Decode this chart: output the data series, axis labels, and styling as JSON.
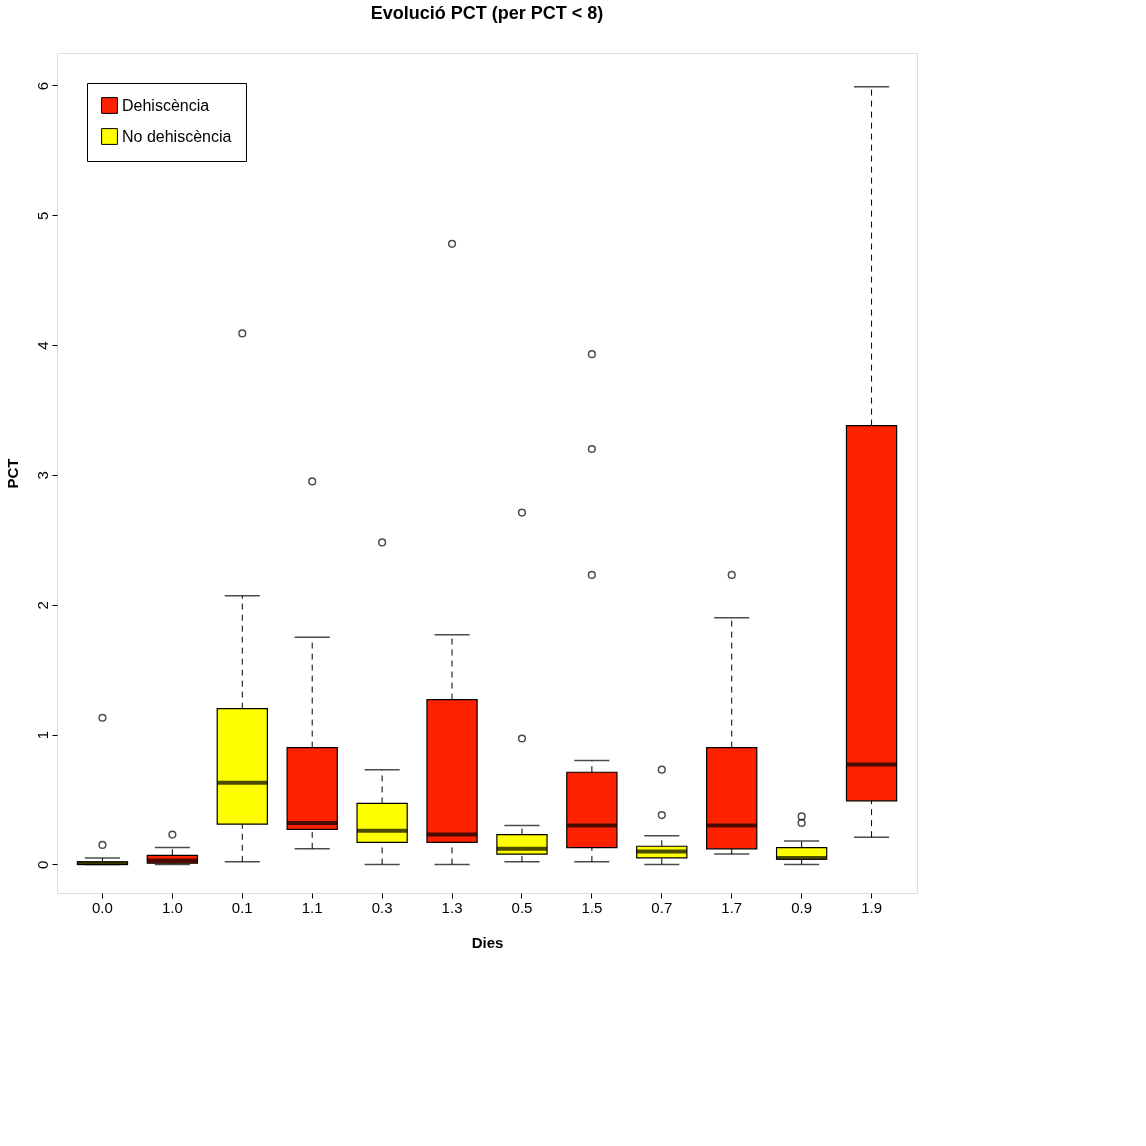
{
  "chart_data": {
    "type": "box",
    "title": "Evolució PCT (per PCT < 8)",
    "xlabel": "Dies",
    "ylabel": "PCT",
    "categories": [
      "0.0",
      "1.0",
      "0.1",
      "1.1",
      "0.3",
      "1.3",
      "0.5",
      "1.5",
      "0.7",
      "1.7",
      "0.9",
      "1.9"
    ],
    "ylim": [
      -0.22,
      6.25
    ],
    "yticks": [
      0,
      1,
      2,
      3,
      4,
      5,
      6
    ],
    "grid": false,
    "legend": "top left",
    "series": [
      {
        "name": "Dehiscència",
        "color": "#ff2200",
        "boxes": [
          null,
          {
            "low": 0,
            "q1": 0.01,
            "median": 0.03,
            "q3": 0.07,
            "high": 0.13,
            "outliers": [
              0.23
            ]
          },
          null,
          {
            "low": 0.12,
            "q1": 0.27,
            "median": 0.32,
            "q3": 0.9,
            "high": 1.75,
            "outliers": [
              2.95
            ]
          },
          null,
          {
            "low": 0,
            "q1": 0.17,
            "median": 0.23,
            "q3": 1.27,
            "high": 1.77,
            "outliers": [
              4.78
            ]
          },
          null,
          {
            "low": 0.02,
            "q1": 0.13,
            "median": 0.3,
            "q3": 0.71,
            "high": 0.8,
            "outliers": [
              2.23,
              3.2,
              3.93
            ]
          },
          null,
          {
            "low": 0.08,
            "q1": 0.12,
            "median": 0.3,
            "q3": 0.9,
            "high": 1.9,
            "outliers": [
              2.23
            ]
          },
          null,
          {
            "low": 0.21,
            "q1": 0.49,
            "median": 0.77,
            "q3": 3.38,
            "high": 5.99
          }
        ]
      },
      {
        "name": "No dehiscència",
        "color": "#ffff00",
        "boxes": [
          {
            "low": 0,
            "q1": 0,
            "median": 0.01,
            "q3": 0.02,
            "high": 0.05,
            "outliers": [
              0.15,
              1.13
            ]
          },
          null,
          {
            "low": 0.02,
            "q1": 0.31,
            "median": 0.63,
            "q3": 1.2,
            "high": 2.07,
            "outliers": [
              4.09
            ]
          },
          null,
          {
            "low": 0,
            "q1": 0.17,
            "median": 0.26,
            "q3": 0.47,
            "high": 0.73,
            "outliers": [
              2.48
            ]
          },
          null,
          {
            "low": 0.02,
            "q1": 0.08,
            "median": 0.12,
            "q3": 0.23,
            "high": 0.3,
            "outliers": [
              0.97,
              2.71
            ]
          },
          null,
          {
            "low": 0,
            "q1": 0.05,
            "median": 0.1,
            "q3": 0.14,
            "high": 0.22,
            "outliers": [
              0.38,
              0.73
            ]
          },
          null,
          {
            "low": 0,
            "q1": 0.04,
            "median": 0.05,
            "q3": 0.13,
            "high": 0.18,
            "outliers": [
              0.32,
              0.37
            ]
          },
          null
        ]
      }
    ]
  }
}
